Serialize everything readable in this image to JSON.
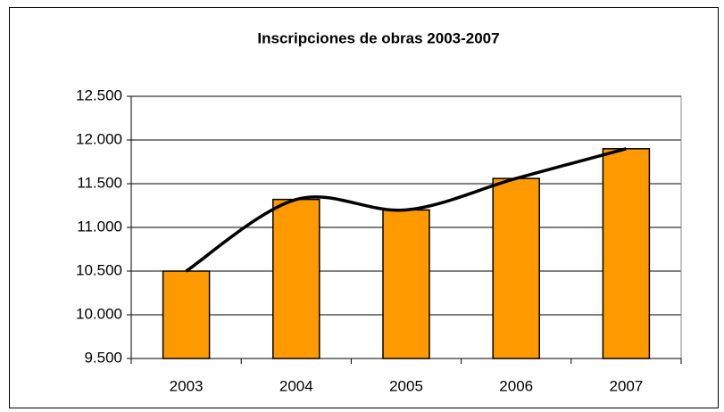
{
  "chart_data": {
    "type": "bar",
    "title": "Inscripciones de obras 2003-2007",
    "categories": [
      "2003",
      "2004",
      "2005",
      "2006",
      "2007"
    ],
    "values": [
      10500,
      11320,
      11200,
      11560,
      11900
    ],
    "color": "#ff9900",
    "line_overlay": true,
    "line_color": "#000000",
    "ylim": [
      9500,
      12500
    ],
    "yticks": [
      {
        "value": 9500,
        "label": "9.500"
      },
      {
        "value": 10000,
        "label": "10.000"
      },
      {
        "value": 10500,
        "label": "10.500"
      },
      {
        "value": 11000,
        "label": "11.000"
      },
      {
        "value": 11500,
        "label": "11.500"
      },
      {
        "value": 12000,
        "label": "12.000"
      },
      {
        "value": 12500,
        "label": "12.500"
      }
    ],
    "grid": true
  }
}
